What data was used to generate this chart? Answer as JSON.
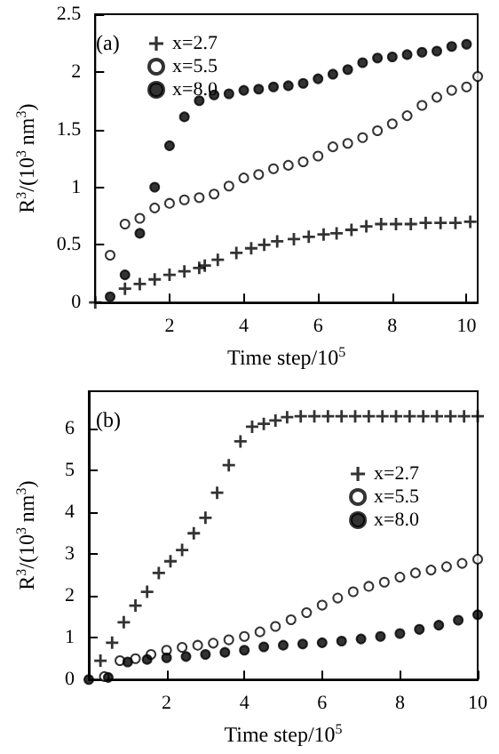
{
  "chart_data": [
    {
      "type": "scatter",
      "xlabel": "Time step/10$^{5}$",
      "ylabel": "R$^{3}$/(10$^{3}$ nm$^{3}$)",
      "annotations": [
        "(a)"
      ],
      "xlim": [
        0,
        10.3
      ],
      "xticks": [
        2,
        4,
        6,
        8,
        10
      ],
      "ylim": [
        0,
        2.5
      ],
      "yticks": [
        0,
        0.5,
        1.0,
        1.5,
        2.0,
        2.5
      ],
      "legend": "top left",
      "grid": false,
      "series": [
        {
          "name": "x=2.7",
          "color": "#000000",
          "marker": "cross",
          "x": [
            0,
            0.4,
            0.8,
            1.2,
            1.6,
            2.0,
            2.4,
            2.8,
            2.95,
            3.3,
            3.8,
            4.2,
            4.55,
            4.9,
            5.35,
            5.75,
            6.15,
            6.5,
            6.9,
            7.3,
            7.7,
            8.1,
            8.5,
            8.9,
            9.3,
            9.7,
            10.1
          ],
          "values": [
            0,
            null,
            0.12,
            0.16,
            0.2,
            0.24,
            0.27,
            0.3,
            0.32,
            0.37,
            0.43,
            0.47,
            0.5,
            0.53,
            0.55,
            0.57,
            0.59,
            0.6,
            0.63,
            0.66,
            0.68,
            0.68,
            0.68,
            0.69,
            0.69,
            0.69,
            0.7
          ]
        },
        {
          "name": "x=5.5",
          "color": "#ffffff",
          "marker": "circle",
          "x": [
            0.4,
            0.8,
            1.2,
            1.6,
            2.0,
            2.4,
            2.8,
            3.2,
            3.6,
            4.0,
            4.4,
            4.8,
            5.2,
            5.6,
            6.0,
            6.4,
            6.8,
            7.2,
            7.6,
            8.0,
            8.4,
            8.8,
            9.2,
            9.6,
            10.0,
            10.3
          ],
          "values": [
            0.41,
            0.68,
            0.73,
            0.82,
            0.86,
            0.89,
            0.91,
            0.94,
            1.01,
            1.08,
            1.11,
            1.16,
            1.19,
            1.22,
            1.27,
            1.35,
            1.38,
            1.43,
            1.49,
            1.55,
            1.62,
            1.71,
            1.78,
            1.84,
            1.87,
            1.96
          ]
        },
        {
          "name": "x=8.0",
          "color": "#000000",
          "marker": "circle",
          "x": [
            0.4,
            0.8,
            1.2,
            1.6,
            2.0,
            2.4,
            2.8,
            3.2,
            3.6,
            4.0,
            4.4,
            4.8,
            5.2,
            5.6,
            6.0,
            6.4,
            6.8,
            7.2,
            7.6,
            8.0,
            8.4,
            8.8,
            9.2,
            9.6,
            10.0
          ],
          "values": [
            0.05,
            0.24,
            0.6,
            1.0,
            1.36,
            1.61,
            1.75,
            1.8,
            1.81,
            1.84,
            1.85,
            1.87,
            1.88,
            1.9,
            1.94,
            1.98,
            2.02,
            2.08,
            2.12,
            2.13,
            2.15,
            2.17,
            2.18,
            2.22,
            2.24
          ]
        }
      ]
    },
    {
      "type": "scatter",
      "xlabel": "Time step/10$^{5}$",
      "ylabel": "R$^{3}$/(10$^{3}$ nm$^{3}$)",
      "annotations": [
        "(b)"
      ],
      "xlim": [
        0,
        10
      ],
      "xticks": [
        2,
        4,
        6,
        8,
        10
      ],
      "ylim": [
        0,
        6.9
      ],
      "yticks": [
        0,
        1,
        2,
        3,
        4,
        5,
        6
      ],
      "legend": "right",
      "grid": false,
      "series": [
        {
          "name": "x=2.7",
          "color": "#000000",
          "marker": "cross",
          "x": [
            0.3,
            0.6,
            0.9,
            1.2,
            1.5,
            1.8,
            2.1,
            2.4,
            2.7,
            3.0,
            3.3,
            3.6,
            3.9,
            4.2,
            4.5,
            4.8,
            5.1,
            5.45,
            5.8,
            6.15,
            6.5,
            6.85,
            7.2,
            7.55,
            7.9,
            8.25,
            8.6,
            8.95,
            9.3,
            9.65,
            10.0
          ],
          "values": [
            0.45,
            0.88,
            1.37,
            1.77,
            2.1,
            2.55,
            2.83,
            3.1,
            3.5,
            3.87,
            4.47,
            5.13,
            5.7,
            6.05,
            6.12,
            6.2,
            6.28,
            6.3,
            6.3,
            6.3,
            6.3,
            6.3,
            6.3,
            6.3,
            6.3,
            6.3,
            6.3,
            6.3,
            6.3,
            6.3,
            6.3
          ]
        },
        {
          "name": "x=5.5",
          "color": "#ffffff",
          "marker": "circle",
          "x": [
            0.4,
            0.8,
            1.2,
            1.6,
            2.0,
            2.4,
            2.8,
            3.2,
            3.6,
            4.0,
            4.4,
            4.8,
            5.2,
            5.6,
            6.0,
            6.4,
            6.8,
            7.2,
            7.6,
            8.0,
            8.4,
            8.8,
            9.2,
            9.6,
            10.0
          ],
          "values": [
            0.07,
            0.45,
            0.5,
            0.6,
            0.7,
            0.77,
            0.82,
            0.87,
            0.95,
            1.03,
            1.14,
            1.27,
            1.43,
            1.6,
            1.78,
            1.95,
            2.1,
            2.23,
            2.33,
            2.45,
            2.55,
            2.62,
            2.7,
            2.78,
            2.88
          ]
        },
        {
          "name": "x=8.0",
          "color": "#000000",
          "marker": "circle",
          "x": [
            0,
            0.5,
            1.0,
            1.5,
            2.0,
            2.5,
            3.0,
            3.5,
            4.0,
            4.5,
            5.0,
            5.5,
            6.0,
            6.5,
            7.0,
            7.5,
            8.0,
            8.5,
            9.0,
            9.5,
            10.0
          ],
          "values": [
            0,
            0.05,
            0.42,
            0.48,
            0.52,
            0.55,
            0.6,
            0.65,
            0.7,
            0.78,
            0.82,
            0.85,
            0.88,
            0.92,
            0.97,
            1.03,
            1.1,
            1.2,
            1.3,
            1.42,
            1.55
          ]
        }
      ]
    }
  ]
}
